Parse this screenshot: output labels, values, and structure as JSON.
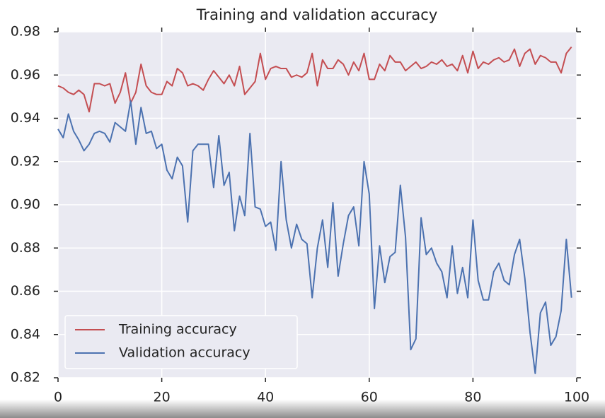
{
  "chart_data": {
    "type": "line",
    "title": "Training and validation accuracy",
    "x": [
      0,
      1,
      2,
      3,
      4,
      5,
      6,
      7,
      8,
      9,
      10,
      11,
      12,
      13,
      14,
      15,
      16,
      17,
      18,
      19,
      20,
      21,
      22,
      23,
      24,
      25,
      26,
      27,
      28,
      29,
      30,
      31,
      32,
      33,
      34,
      35,
      36,
      37,
      38,
      39,
      40,
      41,
      42,
      43,
      44,
      45,
      46,
      47,
      48,
      49,
      50,
      51,
      52,
      53,
      54,
      55,
      56,
      57,
      58,
      59,
      60,
      61,
      62,
      63,
      64,
      65,
      66,
      67,
      68,
      69,
      70,
      71,
      72,
      73,
      74,
      75,
      76,
      77,
      78,
      79,
      80,
      81,
      82,
      83,
      84,
      85,
      86,
      87,
      88,
      89,
      90,
      91,
      92,
      93,
      94,
      95,
      96,
      97,
      98,
      99
    ],
    "series": [
      {
        "name": "Training accuracy",
        "color": "#c44e52",
        "values": [
          0.955,
          0.954,
          0.952,
          0.951,
          0.953,
          0.951,
          0.943,
          0.956,
          0.956,
          0.955,
          0.956,
          0.947,
          0.952,
          0.961,
          0.947,
          0.952,
          0.965,
          0.955,
          0.952,
          0.951,
          0.951,
          0.957,
          0.955,
          0.963,
          0.961,
          0.955,
          0.956,
          0.955,
          0.953,
          0.958,
          0.962,
          0.959,
          0.956,
          0.96,
          0.955,
          0.964,
          0.951,
          0.954,
          0.957,
          0.97,
          0.958,
          0.963,
          0.964,
          0.963,
          0.963,
          0.959,
          0.96,
          0.959,
          0.961,
          0.97,
          0.955,
          0.967,
          0.963,
          0.963,
          0.967,
          0.965,
          0.96,
          0.966,
          0.962,
          0.97,
          0.958,
          0.958,
          0.965,
          0.962,
          0.969,
          0.966,
          0.966,
          0.962,
          0.964,
          0.966,
          0.963,
          0.964,
          0.966,
          0.965,
          0.967,
          0.964,
          0.965,
          0.962,
          0.969,
          0.961,
          0.971,
          0.963,
          0.966,
          0.965,
          0.967,
          0.968,
          0.966,
          0.967,
          0.972,
          0.964,
          0.97,
          0.972,
          0.965,
          0.969,
          0.968,
          0.966,
          0.966,
          0.961,
          0.97,
          0.973
        ]
      },
      {
        "name": "Validation accuracy",
        "color": "#4c72b0",
        "values": [
          0.935,
          0.931,
          0.942,
          0.934,
          0.93,
          0.925,
          0.928,
          0.933,
          0.934,
          0.933,
          0.929,
          0.938,
          0.936,
          0.934,
          0.948,
          0.928,
          0.945,
          0.933,
          0.934,
          0.926,
          0.928,
          0.916,
          0.912,
          0.922,
          0.918,
          0.892,
          0.925,
          0.928,
          0.928,
          0.928,
          0.908,
          0.932,
          0.909,
          0.915,
          0.888,
          0.904,
          0.895,
          0.933,
          0.899,
          0.898,
          0.89,
          0.892,
          0.879,
          0.92,
          0.893,
          0.88,
          0.891,
          0.884,
          0.882,
          0.857,
          0.88,
          0.893,
          0.871,
          0.901,
          0.867,
          0.882,
          0.895,
          0.899,
          0.881,
          0.92,
          0.905,
          0.852,
          0.881,
          0.864,
          0.876,
          0.878,
          0.909,
          0.885,
          0.833,
          0.838,
          0.894,
          0.877,
          0.88,
          0.873,
          0.869,
          0.857,
          0.881,
          0.859,
          0.871,
          0.857,
          0.893,
          0.865,
          0.856,
          0.856,
          0.869,
          0.873,
          0.865,
          0.863,
          0.877,
          0.884,
          0.866,
          0.841,
          0.822,
          0.85,
          0.855,
          0.835,
          0.839,
          0.851,
          0.884,
          0.857
        ]
      }
    ],
    "xlim": [
      0,
      100
    ],
    "xticks": [
      0,
      20,
      40,
      60,
      80,
      100
    ],
    "ylim": [
      0.82,
      0.98
    ],
    "yticks": [
      0.82,
      0.84,
      0.86,
      0.88,
      {
        "value": 0.9,
        "label": "0.90"
      },
      0.92,
      0.94,
      0.96,
      0.98
    ],
    "grid": true,
    "legend": "lower left"
  }
}
